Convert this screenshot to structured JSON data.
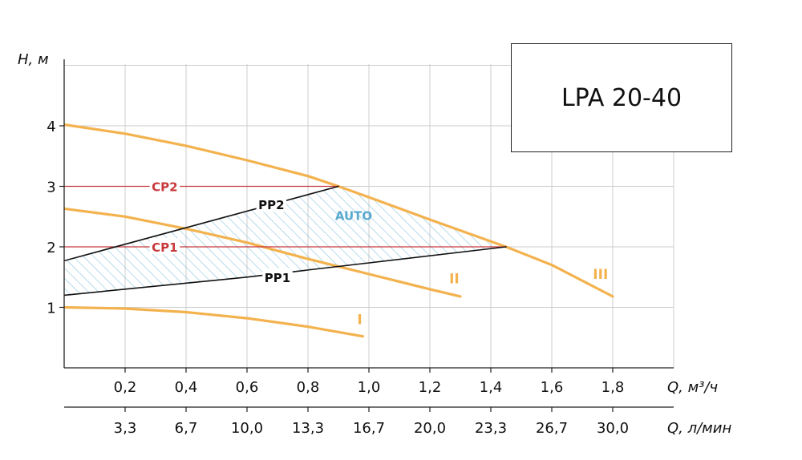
{
  "chart_data": {
    "type": "line",
    "title": "LPA 20-40",
    "ylabel": "H, м",
    "xlabel": "Q, м³/ч",
    "xlabel2": "Q, л/мин",
    "xlim": [
      0,
      2.0
    ],
    "ylim": [
      0,
      5
    ],
    "yticks": [
      1,
      2,
      3,
      4
    ],
    "xticks": [
      0.2,
      0.4,
      0.6,
      0.8,
      1.0,
      1.2,
      1.4,
      1.6,
      1.8
    ],
    "xtick_labels": [
      "0,2",
      "0,4",
      "0,6",
      "0,8",
      "1,0",
      "1,2",
      "1,4",
      "1,6",
      "1,8"
    ],
    "xtick_labels2": [
      "3,3",
      "6,7",
      "10,0",
      "13,3",
      "16,7",
      "20,0",
      "23,3",
      "26,7",
      "30,0"
    ],
    "grid": true,
    "series": [
      {
        "name": "I",
        "color": "#f3b24e",
        "x": [
          0,
          0.2,
          0.4,
          0.6,
          0.8,
          0.98
        ],
        "y": [
          1.0,
          0.98,
          0.92,
          0.82,
          0.68,
          0.52
        ]
      },
      {
        "name": "II",
        "color": "#f3b24e",
        "x": [
          0,
          0.2,
          0.4,
          0.6,
          0.8,
          1.0,
          1.2,
          1.3
        ],
        "y": [
          2.63,
          2.5,
          2.3,
          2.07,
          1.8,
          1.55,
          1.3,
          1.18
        ]
      },
      {
        "name": "III",
        "color": "#f3b24e",
        "x": [
          0,
          0.2,
          0.4,
          0.6,
          0.8,
          0.9,
          1.0,
          1.2,
          1.45,
          1.6,
          1.8
        ],
        "y": [
          4.02,
          3.87,
          3.67,
          3.43,
          3.17,
          3.0,
          2.82,
          2.45,
          2.0,
          1.7,
          1.18
        ]
      },
      {
        "name": "CP2",
        "color": "#c8383a",
        "x": [
          0,
          0.9
        ],
        "y": [
          3.0,
          3.0
        ]
      },
      {
        "name": "CP1",
        "color": "#c8383a",
        "x": [
          0,
          1.45
        ],
        "y": [
          2.0,
          2.0
        ]
      },
      {
        "name": "PP2",
        "color": "#111111",
        "x": [
          0,
          0.9
        ],
        "y": [
          1.77,
          3.0
        ]
      },
      {
        "name": "PP1",
        "color": "#111111",
        "x": [
          0,
          0.6,
          1.45
        ],
        "y": [
          1.2,
          1.5,
          2.0
        ]
      }
    ],
    "area": {
      "name": "AUTO",
      "color": "#6bb7d6"
    },
    "curve_labels": [
      {
        "text": "I",
        "x": 0.97,
        "y": 0.72
      },
      {
        "text": "II",
        "x": 1.28,
        "y": 1.4
      },
      {
        "text": "III",
        "x": 1.76,
        "y": 1.47
      }
    ],
    "line_labels": [
      {
        "text": "CP2",
        "x": 0.33,
        "y": 3.0
      },
      {
        "text": "CP1",
        "x": 0.33,
        "y": 2.0
      },
      {
        "text": "PP2",
        "x": 0.68,
        "y": 2.7
      },
      {
        "text": "PP1",
        "x": 0.7,
        "y": 1.5
      },
      {
        "text": "AUTO",
        "x": 0.95,
        "y": 2.52
      }
    ]
  }
}
